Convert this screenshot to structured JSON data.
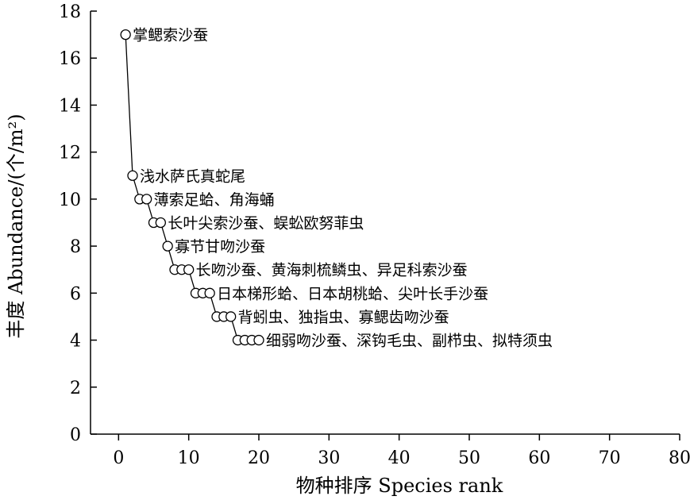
{
  "chart_data": {
    "type": "line",
    "xlabel": "物种排序 Species rank",
    "ylabel": "丰度 Abundance/(个/m²)",
    "xlim": [
      -4,
      80
    ],
    "ylim": [
      0,
      18
    ],
    "x_ticks": [
      0,
      10,
      20,
      30,
      40,
      50,
      60,
      70,
      80
    ],
    "y_ticks": [
      0,
      2,
      4,
      6,
      8,
      10,
      12,
      14,
      16,
      18
    ],
    "grid": false,
    "marker": "open-circle",
    "series": [
      {
        "x": [
          1,
          2,
          3,
          4,
          5,
          6,
          7,
          8,
          9,
          10,
          11,
          12,
          13,
          14,
          15,
          16,
          17,
          18,
          19,
          20
        ],
        "y": [
          17,
          11,
          10,
          10,
          9,
          9,
          8,
          7,
          7,
          7,
          6,
          6,
          6,
          5,
          5,
          5,
          4,
          4,
          4,
          4
        ]
      }
    ],
    "annotations": [
      {
        "text": "掌鳃索沙蚕",
        "x": 1,
        "y": 17
      },
      {
        "text": "浅水萨氏真蛇尾",
        "x": 2,
        "y": 11
      },
      {
        "text": "薄索足蛤、角海蛹",
        "x": 4,
        "y": 10
      },
      {
        "text": "长叶尖索沙蚕、蜈蚣欧努菲虫",
        "x": 6,
        "y": 9
      },
      {
        "text": "寡节甘吻沙蚕",
        "x": 7,
        "y": 8
      },
      {
        "text": "长吻沙蚕、黄海刺梳鳞虫、异足科索沙蚕",
        "x": 10,
        "y": 7
      },
      {
        "text": "日本梯形蛤、日本胡桃蛤、尖叶长手沙蚕",
        "x": 13,
        "y": 6
      },
      {
        "text": "背蚓虫、独指虫、寡鳃齿吻沙蚕",
        "x": 16,
        "y": 5
      },
      {
        "text": "细弱吻沙蚕、深钩毛虫、副栉虫、拟特须虫",
        "x": 20,
        "y": 4
      }
    ]
  }
}
